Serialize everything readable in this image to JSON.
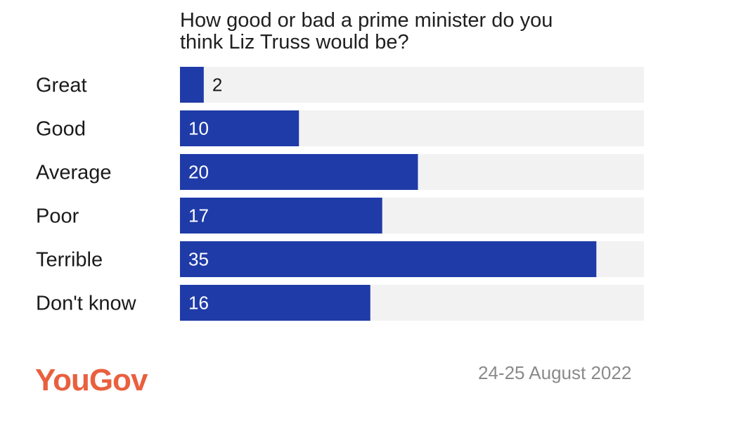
{
  "chart_data": {
    "type": "bar",
    "orientation": "horizontal",
    "title": "How good or bad a prime minister do you think Liz Truss would be?",
    "title_lines": [
      "How good or bad a prime minister do you",
      "think Liz Truss would be?"
    ],
    "categories": [
      "Great",
      "Good",
      "Average",
      "Poor",
      "Terrible",
      "Don't know"
    ],
    "values": [
      2,
      10,
      20,
      17,
      35,
      16
    ],
    "xlim": [
      0,
      39
    ],
    "bar_color": "#1f3ba8",
    "track_color": "#f2f2f2",
    "xlabel": "",
    "ylabel": "",
    "grid": false
  },
  "footer": {
    "brand": "YouGov",
    "brand_color": "#e9603f",
    "date": "24-25 August 2022"
  }
}
